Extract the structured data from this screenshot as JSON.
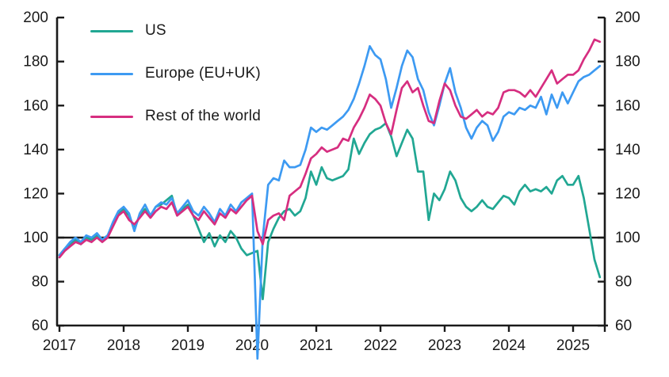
{
  "chart_data": {
    "type": "line",
    "title": "",
    "x_axis": {
      "tick_labels": [
        "2017",
        "2018",
        "2019",
        "2020",
        "2021",
        "2022",
        "2023",
        "2024",
        "2025"
      ],
      "start_year": 2017,
      "points_per_year": 12,
      "x_range": [
        2017.0,
        2025.42
      ]
    },
    "y_axis": {
      "min": 60,
      "max": 200,
      "ticks": [
        60,
        80,
        100,
        120,
        140,
        160,
        180,
        200
      ],
      "baseline": 100,
      "sides": "both"
    },
    "grid": "off",
    "legend_position": "top-left-inside",
    "axis_color": "#1a1a1a",
    "series": [
      {
        "name": "US",
        "color": "#21A793",
        "values": [
          92,
          95,
          97,
          99,
          97,
          100,
          99,
          101,
          99,
          101,
          106,
          111,
          113,
          110,
          104,
          110,
          113,
          110,
          114,
          115,
          117,
          119,
          110,
          113,
          115,
          110,
          104,
          98,
          102,
          96,
          101,
          98,
          103,
          100,
          95,
          92,
          93,
          94,
          72,
          98,
          104,
          109,
          112,
          113,
          110,
          112,
          118,
          130,
          124,
          132,
          127,
          126,
          127,
          128,
          131,
          145,
          138,
          143,
          147,
          149,
          150,
          152,
          146,
          137,
          143,
          149,
          145,
          130,
          130,
          108,
          120,
          117,
          122,
          130,
          126,
          118,
          114,
          112,
          114,
          117,
          114,
          113,
          116,
          119,
          118,
          115,
          121,
          124,
          121,
          122,
          121,
          123,
          120,
          126,
          128,
          124,
          124,
          128,
          118,
          104,
          90,
          82
        ]
      },
      {
        "name": "Europe (EU+UK)",
        "color": "#3D9AF2",
        "values": [
          92,
          95,
          98,
          100,
          98,
          101,
          100,
          102,
          99,
          101,
          107,
          112,
          114,
          111,
          103,
          111,
          115,
          110,
          114,
          116,
          115,
          118,
          111,
          114,
          117,
          112,
          110,
          114,
          111,
          107,
          113,
          110,
          115,
          112,
          116,
          118,
          120,
          45,
          100,
          124,
          127,
          126,
          135,
          132,
          132,
          133,
          140,
          150,
          148,
          150,
          149,
          151,
          153,
          155,
          158,
          163,
          170,
          178,
          187,
          183,
          181,
          172,
          159,
          168,
          178,
          185,
          182,
          172,
          167,
          157,
          151,
          160,
          170,
          177,
          166,
          159,
          150,
          145,
          150,
          153,
          151,
          144,
          148,
          155,
          157,
          156,
          159,
          158,
          160,
          159,
          164,
          156,
          165,
          159,
          166,
          161,
          166,
          171,
          173,
          174,
          176,
          178
        ]
      },
      {
        "name": "Rest of the world",
        "color": "#D62E80",
        "values": [
          91,
          94,
          96,
          98,
          97,
          99,
          98,
          100,
          98,
          100,
          105,
          110,
          112,
          108,
          106,
          109,
          112,
          109,
          112,
          114,
          113,
          116,
          110,
          112,
          114,
          110,
          108,
          112,
          109,
          106,
          111,
          109,
          113,
          111,
          114,
          117,
          119,
          103,
          97,
          108,
          110,
          111,
          108,
          119,
          121,
          123,
          129,
          136,
          138,
          141,
          139,
          140,
          141,
          145,
          144,
          150,
          154,
          159,
          165,
          163,
          160,
          152,
          147,
          158,
          168,
          171,
          166,
          168,
          160,
          153,
          152,
          162,
          170,
          167,
          160,
          155,
          154,
          156,
          158,
          155,
          157,
          156,
          159,
          166,
          167,
          167,
          166,
          164,
          167,
          164,
          168,
          172,
          176,
          170,
          172,
          174,
          174,
          176,
          181,
          185,
          190,
          189
        ]
      }
    ]
  }
}
